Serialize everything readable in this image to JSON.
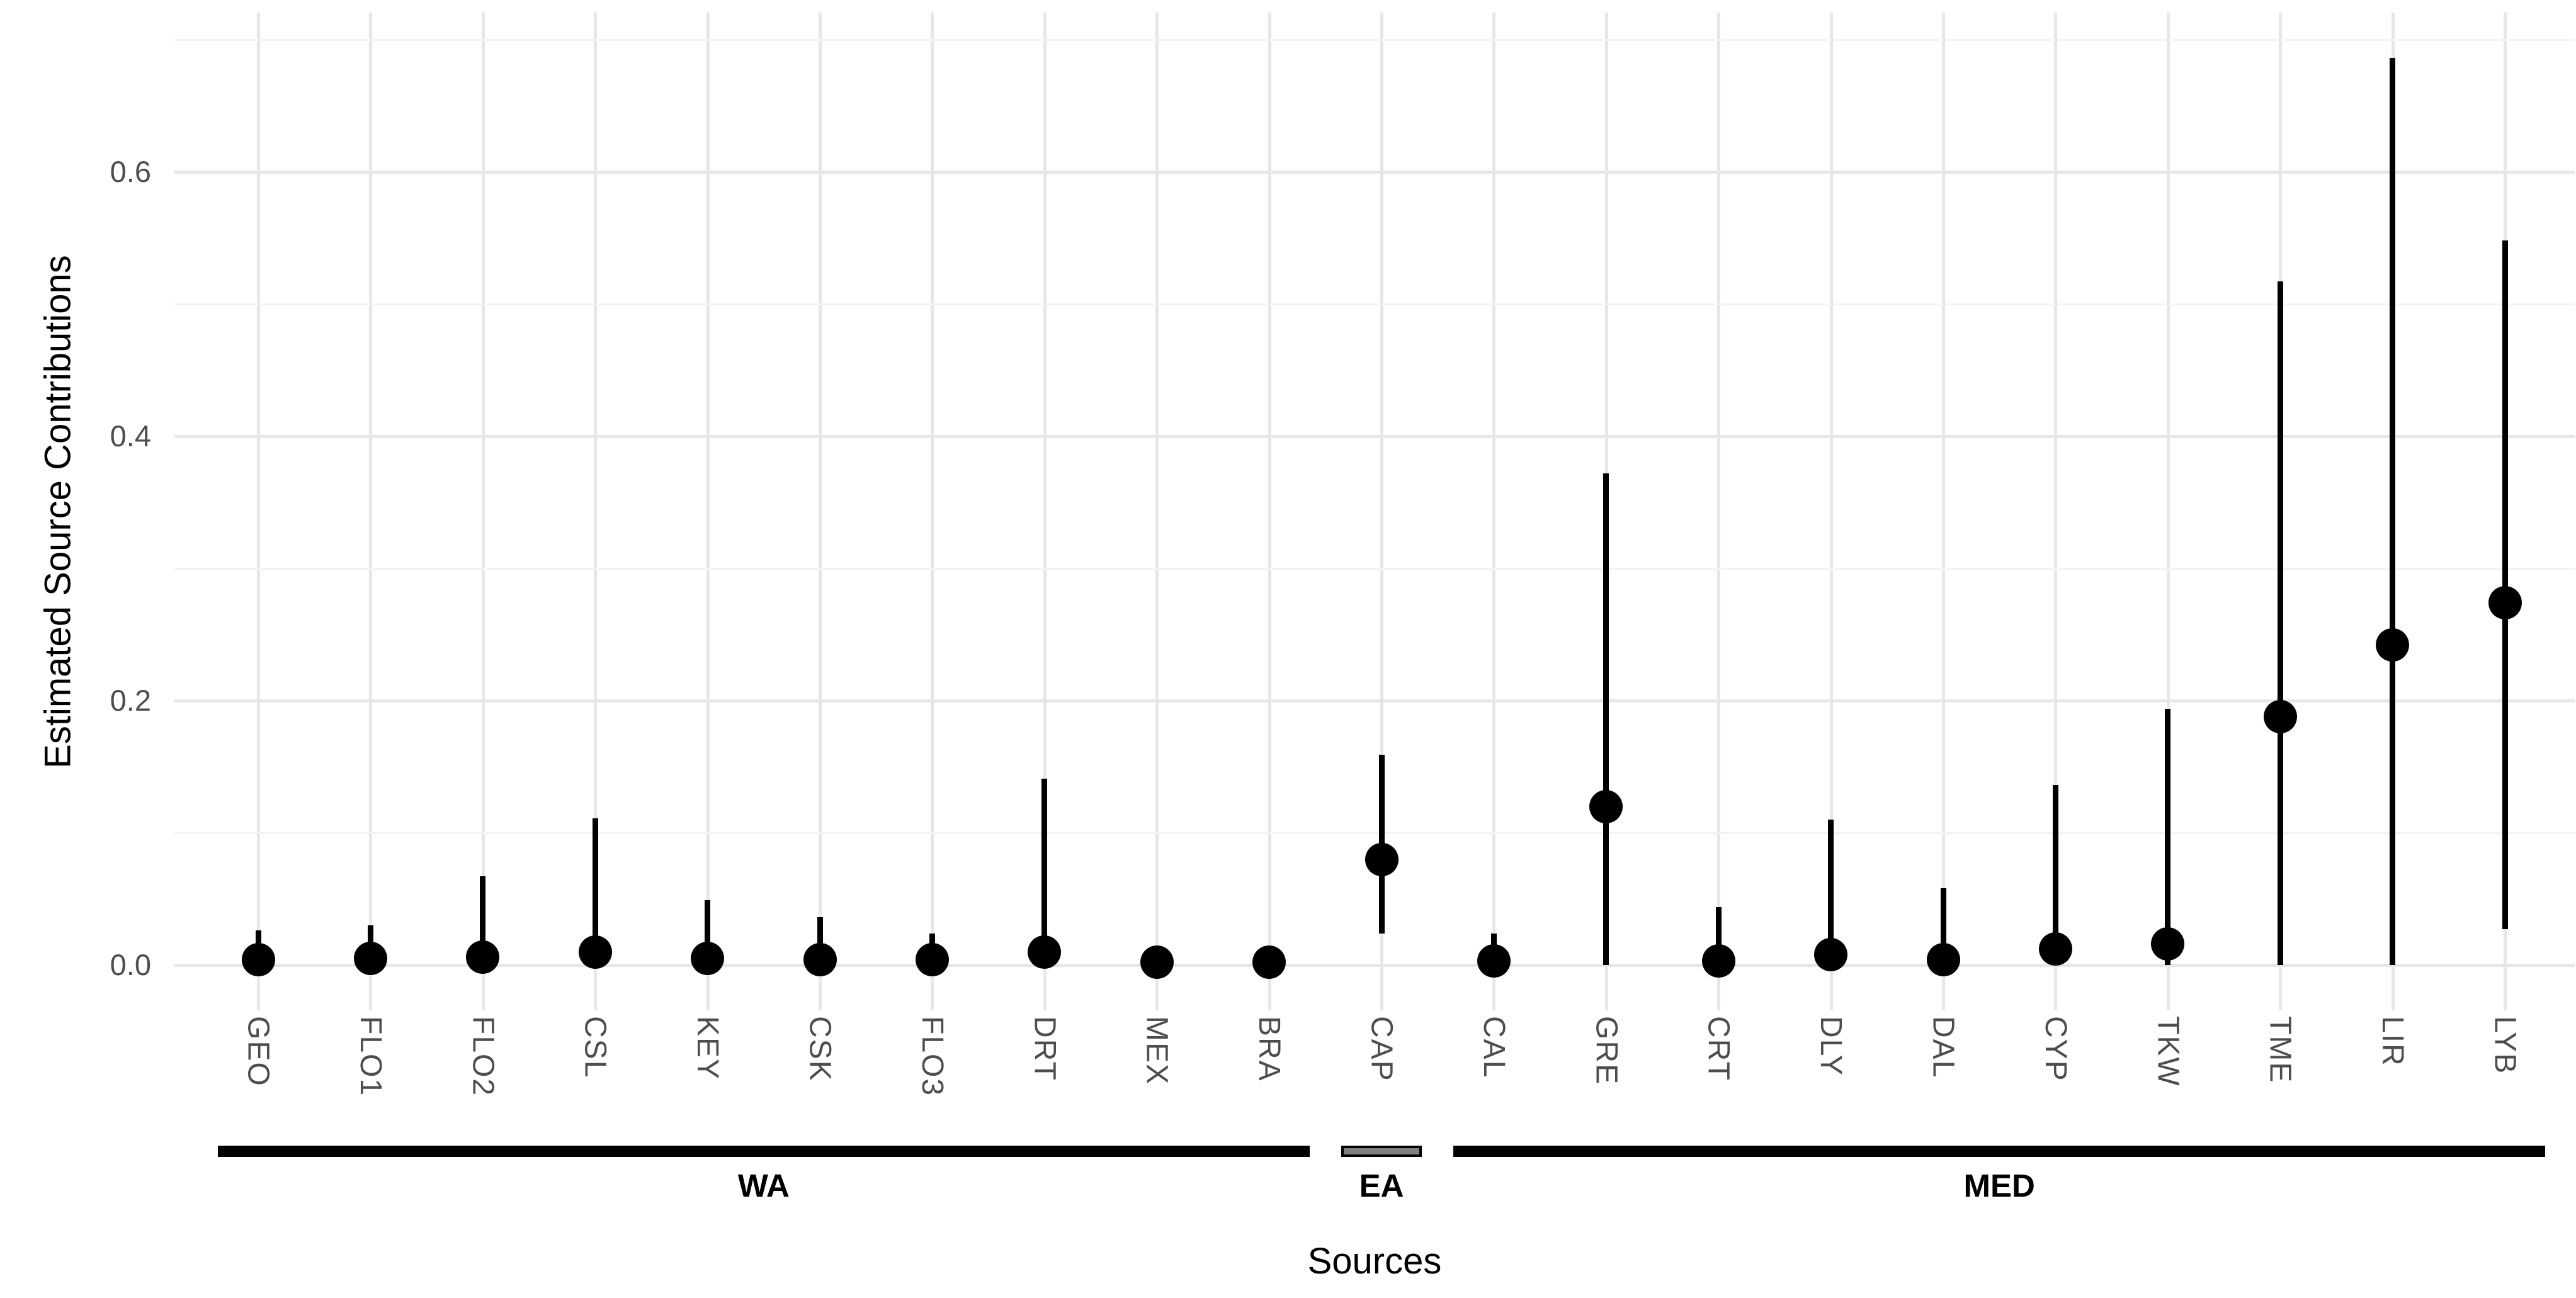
{
  "chart_data": {
    "type": "pointrange",
    "title": "",
    "xlabel": "Sources",
    "ylabel": "Estimated Source Contributions",
    "ylim": [
      -0.034,
      0.72
    ],
    "y_major_ticks": [
      0.0,
      0.2,
      0.4,
      0.6
    ],
    "y_major_tick_labels": [
      "0.0",
      "0.2",
      "0.4",
      "0.6"
    ],
    "y_minor_ticks": [
      0.1,
      0.3,
      0.5,
      0.7
    ],
    "grid": "horizontal major+minor and vertical per-category, light gray on white",
    "legend_position": "none",
    "categories": [
      "GEO",
      "FLO1",
      "FLO2",
      "CSL",
      "KEY",
      "CSK",
      "FLO3",
      "DRT",
      "MEX",
      "BRA",
      "CAP",
      "CAL",
      "GRE",
      "CRT",
      "DLY",
      "DAL",
      "CYP",
      "TKW",
      "TME",
      "LIR",
      "LYB"
    ],
    "points": [
      {
        "label": "GEO",
        "group": "WA",
        "est": 0.004,
        "lo": 0.0,
        "hi": 0.026
      },
      {
        "label": "FLO1",
        "group": "WA",
        "est": 0.005,
        "lo": 0.0,
        "hi": 0.03
      },
      {
        "label": "FLO2",
        "group": "WA",
        "est": 0.006,
        "lo": 0.0,
        "hi": 0.067
      },
      {
        "label": "CSL",
        "group": "WA",
        "est": 0.01,
        "lo": 0.0,
        "hi": 0.111
      },
      {
        "label": "KEY",
        "group": "WA",
        "est": 0.005,
        "lo": 0.0,
        "hi": 0.049
      },
      {
        "label": "CSK",
        "group": "WA",
        "est": 0.004,
        "lo": 0.0,
        "hi": 0.036
      },
      {
        "label": "FLO3",
        "group": "WA",
        "est": 0.004,
        "lo": 0.0,
        "hi": 0.024
      },
      {
        "label": "DRT",
        "group": "WA",
        "est": 0.01,
        "lo": 0.0,
        "hi": 0.141
      },
      {
        "label": "MEX",
        "group": "WA",
        "est": 0.002,
        "lo": 0.0,
        "hi": 0.01
      },
      {
        "label": "BRA",
        "group": "WA",
        "est": 0.002,
        "lo": 0.0,
        "hi": 0.01
      },
      {
        "label": "CAP",
        "group": "EA",
        "est": 0.08,
        "lo": 0.024,
        "hi": 0.159
      },
      {
        "label": "CAL",
        "group": "MED",
        "est": 0.003,
        "lo": 0.0,
        "hi": 0.024
      },
      {
        "label": "GRE",
        "group": "MED",
        "est": 0.12,
        "lo": 0.0,
        "hi": 0.372
      },
      {
        "label": "CRT",
        "group": "MED",
        "est": 0.003,
        "lo": 0.0,
        "hi": 0.044
      },
      {
        "label": "DLY",
        "group": "MED",
        "est": 0.008,
        "lo": 0.0,
        "hi": 0.11
      },
      {
        "label": "DAL",
        "group": "MED",
        "est": 0.004,
        "lo": 0.0,
        "hi": 0.058
      },
      {
        "label": "CYP",
        "group": "MED",
        "est": 0.012,
        "lo": 0.0,
        "hi": 0.136
      },
      {
        "label": "TKW",
        "group": "MED",
        "est": 0.016,
        "lo": 0.0,
        "hi": 0.194
      },
      {
        "label": "TME",
        "group": "MED",
        "est": 0.188,
        "lo": 0.0,
        "hi": 0.517
      },
      {
        "label": "LIR",
        "group": "MED",
        "est": 0.242,
        "lo": 0.0,
        "hi": 0.686
      },
      {
        "label": "LYB",
        "group": "MED",
        "est": 0.274,
        "lo": 0.027,
        "hi": 0.548
      }
    ],
    "groups": [
      {
        "label": "WA",
        "from": 0,
        "to": 9,
        "variant": "solid"
      },
      {
        "label": "EA",
        "from": 10,
        "to": 10,
        "variant": "outlined"
      },
      {
        "label": "MED",
        "from": 11,
        "to": 20,
        "variant": "solid"
      }
    ],
    "colors": {
      "point": "#000000",
      "range_line": "#000000",
      "grid_major": "#e7e7e7",
      "grid_minor": "#f3f3f3",
      "tick_label": "#4d4d4d",
      "axis_title": "#000000",
      "bracket": "#000000",
      "bracket_ea_fill": "#7f7f7f",
      "background": "#ffffff"
    }
  }
}
